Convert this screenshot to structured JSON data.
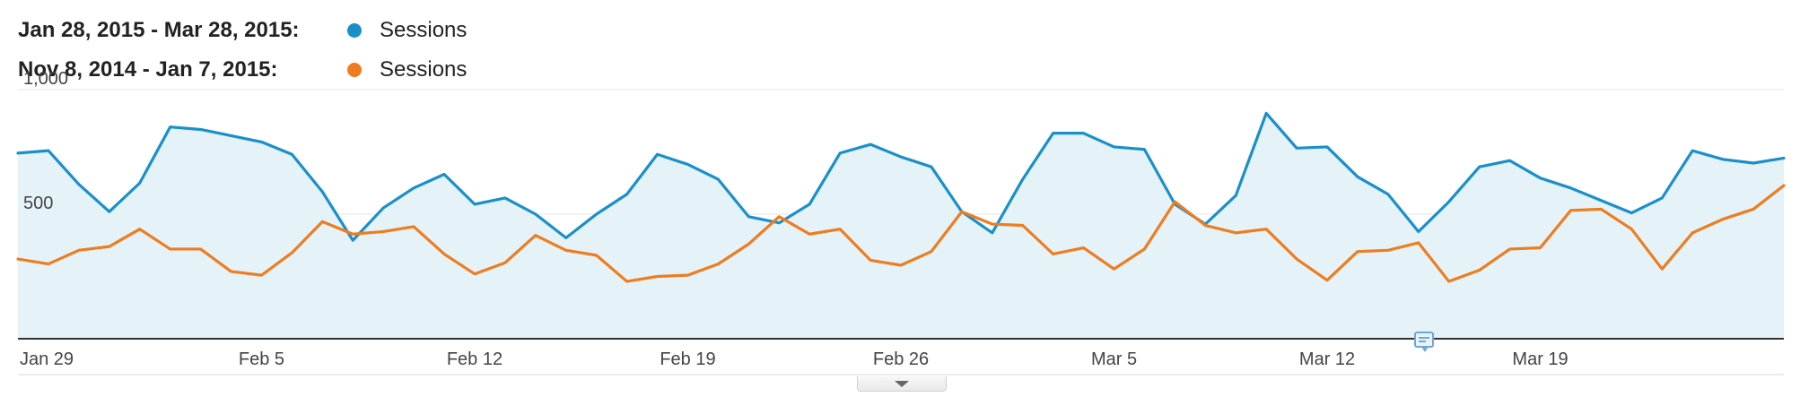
{
  "legend": {
    "current_range": "Jan 28, 2015 - Mar 28, 2015:",
    "current_metric": "Sessions",
    "previous_range": "Nov 8, 2014 - Jan 7, 2015:",
    "previous_metric": "Sessions"
  },
  "colors": {
    "current": "#1a90cb",
    "previous": "#ed7d1f",
    "area_fill": "#e5f2f8",
    "gridline": "#e6e6e6",
    "baseline": "#333333"
  },
  "icons": {
    "annotation": "annotation-icon",
    "expand": "chevron-down-icon"
  },
  "chart_data": {
    "type": "line",
    "title": "",
    "xlabel": "",
    "ylabel": "",
    "ylim": [
      0,
      1000
    ],
    "yticks": [
      500,
      1000
    ],
    "ytick_labels": [
      "500",
      "1,000"
    ],
    "xtick_labels": [
      "Jan 29",
      "Feb 5",
      "Feb 12",
      "Feb 19",
      "Feb 26",
      "Mar 5",
      "Mar 12",
      "Mar 19"
    ],
    "xtick_indices": [
      1,
      8,
      15,
      22,
      29,
      36,
      43,
      50
    ],
    "grid": true,
    "area_fill_series": 0,
    "series": [
      {
        "name": "Sessions",
        "color": "#1a90cb",
        "values": [
          745,
          755,
          620,
          510,
          625,
          850,
          840,
          815,
          790,
          740,
          590,
          395,
          525,
          605,
          660,
          540,
          565,
          500,
          405,
          500,
          580,
          740,
          700,
          640,
          490,
          465,
          540,
          745,
          780,
          730,
          690,
          510,
          425,
          640,
          825,
          825,
          770,
          760,
          540,
          460,
          575,
          905,
          765,
          770,
          650,
          580,
          430,
          550,
          690,
          715,
          645,
          605,
          555,
          505,
          565,
          755,
          720,
          705,
          725
        ]
      },
      {
        "name": "Sessions",
        "color": "#ed7d1f",
        "values": [
          320,
          300,
          355,
          370,
          440,
          360,
          360,
          270,
          255,
          345,
          470,
          420,
          430,
          450,
          340,
          260,
          305,
          415,
          355,
          335,
          230,
          250,
          255,
          300,
          380,
          490,
          420,
          440,
          315,
          295,
          350,
          510,
          460,
          455,
          340,
          365,
          280,
          360,
          550,
          455,
          425,
          440,
          320,
          235,
          350,
          355,
          385,
          230,
          275,
          360,
          365,
          515,
          520,
          440,
          280,
          425,
          480,
          520,
          615
        ]
      }
    ]
  }
}
